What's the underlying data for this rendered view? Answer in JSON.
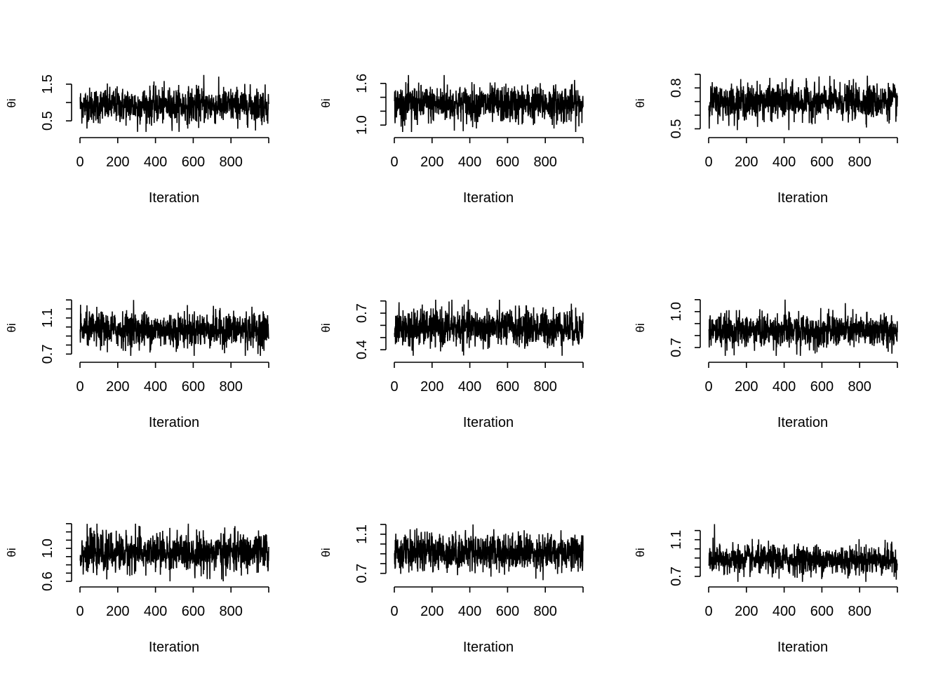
{
  "chart_data": [
    {
      "type": "line",
      "xlabel": "Iteration",
      "ylabel": "θi",
      "n_iterations": 1000,
      "xlim": [
        0,
        1000
      ],
      "x_ticks": [
        0,
        200,
        400,
        600,
        800
      ],
      "ylim": [
        0.12,
        1.88
      ],
      "y_ticks": [
        0.5,
        1.0,
        1.5
      ],
      "y_tick_labels": [
        "0.5",
        "",
        "1.5"
      ],
      "series_summary": {
        "mean": 0.92,
        "min": 0.2,
        "max": 1.75
      }
    },
    {
      "type": "line",
      "xlabel": "Iteration",
      "ylabel": "θi",
      "n_iterations": 1000,
      "xlim": [
        0,
        1000
      ],
      "x_ticks": [
        0,
        200,
        400,
        600,
        800
      ],
      "ylim": [
        0.86,
        1.79
      ],
      "y_ticks": [
        1.0,
        1.2,
        1.4,
        1.6
      ],
      "y_tick_labels": [
        "1.0",
        "",
        "",
        "1.6"
      ],
      "series_summary": {
        "mean": 1.3,
        "min": 0.9,
        "max": 1.72
      }
    },
    {
      "type": "line",
      "xlabel": "Iteration",
      "ylabel": "θi",
      "n_iterations": 1000,
      "xlim": [
        0,
        1000
      ],
      "x_ticks": [
        0,
        200,
        400,
        600,
        800
      ],
      "ylim": [
        0.456,
        0.93
      ],
      "y_ticks": [
        0.5,
        0.6,
        0.7,
        0.8,
        0.9
      ],
      "y_tick_labels": [
        "0.5",
        "",
        "",
        "0.8",
        ""
      ],
      "series_summary": {
        "mean": 0.7,
        "min": 0.49,
        "max": 0.89
      }
    },
    {
      "type": "line",
      "xlabel": "Iteration",
      "ylabel": "θi",
      "n_iterations": 1000,
      "xlim": [
        0,
        1000
      ],
      "x_ticks": [
        0,
        200,
        400,
        600,
        800
      ],
      "ylim": [
        0.64,
        1.356
      ],
      "y_ticks": [
        0.7,
        0.8,
        0.9,
        1.0,
        1.1,
        1.2,
        1.3
      ],
      "y_tick_labels": [
        "0.7",
        "",
        "",
        "",
        "1.1",
        "",
        ""
      ],
      "series_summary": {
        "mean": 0.97,
        "min": 0.68,
        "max": 1.3
      }
    },
    {
      "type": "line",
      "xlabel": "Iteration",
      "ylabel": "θi",
      "n_iterations": 1000,
      "xlim": [
        0,
        1000
      ],
      "x_ticks": [
        0,
        200,
        400,
        600,
        800
      ],
      "ylim": [
        0.32,
        0.85
      ],
      "y_ticks": [
        0.4,
        0.5,
        0.6,
        0.7,
        0.8
      ],
      "y_tick_labels": [
        "0.4",
        "",
        "",
        "0.7",
        ""
      ],
      "series_summary": {
        "mean": 0.58,
        "min": 0.35,
        "max": 0.81
      }
    },
    {
      "type": "line",
      "xlabel": "Iteration",
      "ylabel": "θi",
      "n_iterations": 1000,
      "xlim": [
        0,
        1000
      ],
      "x_ticks": [
        0,
        200,
        400,
        600,
        800
      ],
      "ylim": [
        0.6,
        1.14
      ],
      "y_ticks": [
        0.7,
        0.8,
        0.9,
        1.0,
        1.1
      ],
      "y_tick_labels": [
        "0.7",
        "",
        "",
        "1.0",
        ""
      ],
      "series_summary": {
        "mean": 0.84,
        "min": 0.63,
        "max": 1.1
      }
    },
    {
      "type": "line",
      "xlabel": "Iteration",
      "ylabel": "θi",
      "n_iterations": 1000,
      "xlim": [
        0,
        1000
      ],
      "x_ticks": [
        0,
        200,
        400,
        600,
        800
      ],
      "ylim": [
        0.566,
        1.35
      ],
      "y_ticks": [
        0.6,
        0.7,
        0.8,
        0.9,
        1.0,
        1.1,
        1.2,
        1.3
      ],
      "y_tick_labels": [
        "0.6",
        "",
        "",
        "",
        "1.0",
        "",
        "",
        ""
      ],
      "series_summary": {
        "mean": 0.95,
        "min": 0.6,
        "max": 1.3
      }
    },
    {
      "type": "line",
      "xlabel": "Iteration",
      "ylabel": "θi",
      "n_iterations": 1000,
      "xlim": [
        0,
        1000
      ],
      "x_ticks": [
        0,
        200,
        400,
        600,
        800
      ],
      "ylim": [
        0.59,
        1.25
      ],
      "y_ticks": [
        0.7,
        0.8,
        0.9,
        1.0,
        1.1,
        1.2
      ],
      "y_tick_labels": [
        "0.7",
        "",
        "",
        "",
        "1.1",
        ""
      ],
      "series_summary": {
        "mean": 0.92,
        "min": 0.63,
        "max": 1.2
      }
    },
    {
      "type": "line",
      "xlabel": "Iteration",
      "ylabel": "θi",
      "n_iterations": 1000,
      "xlim": [
        0,
        1000
      ],
      "x_ticks": [
        0,
        200,
        400,
        600,
        800
      ],
      "ylim": [
        0.615,
        1.32
      ],
      "y_ticks": [
        0.7,
        0.8,
        0.9,
        1.0,
        1.1,
        1.2
      ],
      "y_tick_labels": [
        "0.7",
        "",
        "",
        "",
        "1.1",
        ""
      ],
      "series_summary": {
        "mean": 0.88,
        "min": 0.64,
        "max": 1.27
      }
    }
  ]
}
